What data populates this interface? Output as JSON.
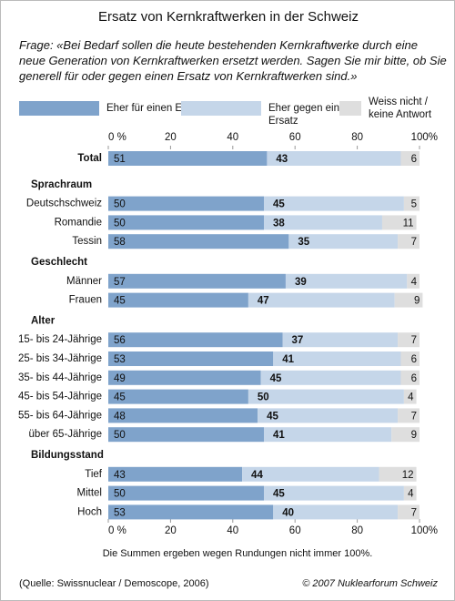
{
  "chart_data": {
    "type": "bar",
    "orientation": "horizontal",
    "stacked": true,
    "title": "Ersatz von Kernkraftwerken in der Schweiz",
    "subtitle": "Frage: «Bei Bedarf sollen die heute bestehenden Kernkraftwerke durch eine neue Generation von Kernkraftwerken ersetzt werden. Sagen Sie mir bitte, ob Sie generell für oder gegen einen Ersatz von Kernkraftwerken sind.»",
    "categories": [
      "Total",
      "Sprachraum",
      "Deutschschweiz",
      "Romandie",
      "Tessin",
      "Geschlecht",
      "Männer",
      "Frauen",
      "Alter",
      "15- bis 24-Jährige",
      "25- bis 34-Jährige",
      "35- bis 44-Jährige",
      "45- bis 54-Jährige",
      "55- bis 64-Jährige",
      "über 65-Jährige",
      "Bildungsstand",
      "Tief",
      "Mittel",
      "Hoch"
    ],
    "series": [
      {
        "name": "Eher für einen Ersatz",
        "color": "#7fa3cb",
        "label_color": "#ffffff",
        "values": [
          51,
          null,
          50,
          50,
          58,
          null,
          57,
          45,
          null,
          56,
          53,
          49,
          45,
          48,
          50,
          null,
          43,
          50,
          53
        ]
      },
      {
        "name": "Eher gegen einen Ersatz",
        "color": "#c5d6e9",
        "label_color": "#4a7ab2",
        "values": [
          43,
          null,
          45,
          38,
          35,
          null,
          39,
          47,
          null,
          37,
          41,
          45,
          50,
          45,
          41,
          null,
          44,
          45,
          40
        ]
      },
      {
        "name": "Weiss nicht / keine Antwort",
        "color": "#dedede",
        "label_color": "#8a8a8a",
        "values": [
          6,
          null,
          5,
          11,
          7,
          null,
          4,
          9,
          null,
          7,
          6,
          6,
          4,
          7,
          9,
          null,
          12,
          4,
          7
        ]
      }
    ],
    "xlim": [
      0,
      100
    ],
    "xticks": [
      {
        "value": 0,
        "label": "0 %"
      },
      20,
      40,
      60,
      80,
      {
        "value": 100,
        "label": "100%"
      }
    ],
    "note": "Die Summen ergeben wegen Rundungen nicht immer 100%.",
    "source": "(Quelle: Swissnuclear / Demoscope, 2006)",
    "copyright": "© 2007 Nuklearforum Schweiz"
  }
}
